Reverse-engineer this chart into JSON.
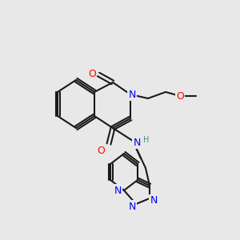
{
  "bg_color": "#e8e8e8",
  "bond_color": "#1a1a1a",
  "bond_width": 1.5,
  "atom_colors": {
    "N": "#0000ff",
    "O": "#ff0000",
    "C": "#1a1a1a",
    "H": "#4a8a8a"
  },
  "font_size_atom": 9,
  "font_size_small": 7
}
